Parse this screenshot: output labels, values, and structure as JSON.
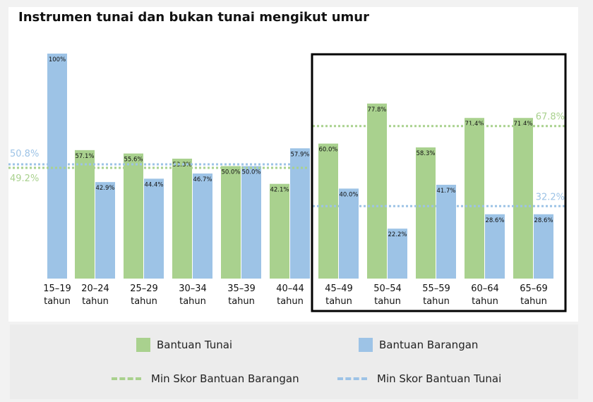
{
  "title": "Instrumen tunai dan bukan tunai mengikut umur",
  "colors": {
    "tunai": "#a9d18e",
    "barangan": "#9dc3e6",
    "mean_tunai_line": "#a9d18e",
    "mean_barangan_line": "#9dc3e6"
  },
  "legend": {
    "tunai": "Bantuan Tunai",
    "barangan": "Bantuan Barangan",
    "mean_barangan": "Min Skor Bantuan Barangan",
    "mean_tunai": "Min Skor Bantuan Tunai"
  },
  "chart_data": {
    "type": "bar",
    "categories": [
      [
        "15–19",
        "tahun"
      ],
      [
        "20–24",
        "tahun"
      ],
      [
        "25–29",
        "tahun"
      ],
      [
        "30–34",
        "tahun"
      ],
      [
        "35–39",
        "tahun"
      ],
      [
        "40–44",
        "tahun"
      ],
      [
        "45–49",
        "tahun"
      ],
      [
        "50–54",
        "tahun"
      ],
      [
        "55–59",
        "tahun"
      ],
      [
        "60–64",
        "tahun"
      ],
      [
        "65–69",
        "tahun"
      ]
    ],
    "series": [
      {
        "name": "Bantuan Tunai",
        "key": "tunai",
        "values": [
          null,
          57.1,
          55.6,
          53.3,
          50.0,
          42.1,
          60.0,
          77.8,
          58.3,
          71.4,
          71.4
        ],
        "labels": [
          null,
          "57.1%",
          "55.6%",
          "53.3%",
          "50.0%",
          "42.1%",
          "60.0%",
          "77.8%",
          "58.3%",
          "71.4%",
          "71.4%"
        ]
      },
      {
        "name": "Bantuan Barangan",
        "key": "barangan",
        "values": [
          100,
          42.9,
          44.4,
          46.7,
          50.0,
          57.9,
          40.0,
          22.2,
          41.7,
          28.6,
          28.6
        ],
        "labels": [
          "100%",
          "42.9%",
          "44.4%",
          "46.7%",
          "50.0%",
          "57.9%",
          "40.0%",
          "22.2%",
          "41.7%",
          "28.6%",
          "28.6%"
        ]
      }
    ],
    "reference_lines": [
      {
        "group": "left",
        "categories_from": 0,
        "categories_to": 5,
        "series": "barangan",
        "value": 50.8,
        "label": "50.8%"
      },
      {
        "group": "left",
        "categories_from": 0,
        "categories_to": 5,
        "series": "tunai",
        "value": 49.2,
        "label": "49.2%"
      },
      {
        "group": "right",
        "categories_from": 6,
        "categories_to": 10,
        "series": "tunai",
        "value": 67.8,
        "label": "67.8%"
      },
      {
        "group": "right",
        "categories_from": 6,
        "categories_to": 10,
        "series": "barangan",
        "value": 32.2,
        "label": "32.2%"
      }
    ],
    "highlight_box_categories": [
      6,
      10
    ],
    "ylim": [
      0,
      100
    ],
    "grid": false,
    "legend_position": "bottom"
  }
}
